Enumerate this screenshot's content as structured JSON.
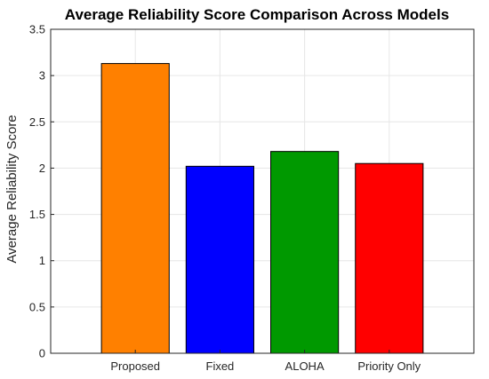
{
  "chart_data": {
    "type": "bar",
    "title": "Average Reliability Score Comparison Across Models",
    "xlabel": "",
    "ylabel": "Average Reliability Score",
    "categories": [
      "Proposed",
      "Fixed",
      "ALOHA",
      "Priority Only"
    ],
    "values": [
      3.13,
      2.02,
      2.18,
      2.05
    ],
    "colors": [
      "#ff8000",
      "#0000ff",
      "#009900",
      "#ff0000"
    ],
    "ylim": [
      0,
      3.5
    ],
    "yticks": [
      0,
      0.5,
      1,
      1.5,
      2,
      2.5,
      3,
      3.5
    ],
    "ytick_labels": [
      "0",
      "0.5",
      "1",
      "1.5",
      "2",
      "2.5",
      "3",
      "3.5"
    ],
    "grid": true,
    "legend": "none"
  }
}
